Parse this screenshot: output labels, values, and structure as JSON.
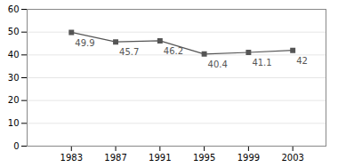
{
  "chart_data": {
    "type": "line",
    "x": [
      1983,
      1987,
      1991,
      1995,
      1999,
      2003
    ],
    "values": [
      49.9,
      45.7,
      46.2,
      40.4,
      41.1,
      42
    ],
    "color": "#555555",
    "marker": "square",
    "xlim": [
      1979,
      2006
    ],
    "xticks": [
      1983,
      1987,
      1991,
      1995,
      1999,
      2003
    ],
    "ylim": [
      0,
      60
    ],
    "yticks": [
      0,
      10,
      20,
      30,
      40,
      50,
      60
    ],
    "grid": true,
    "data_labels": true
  }
}
